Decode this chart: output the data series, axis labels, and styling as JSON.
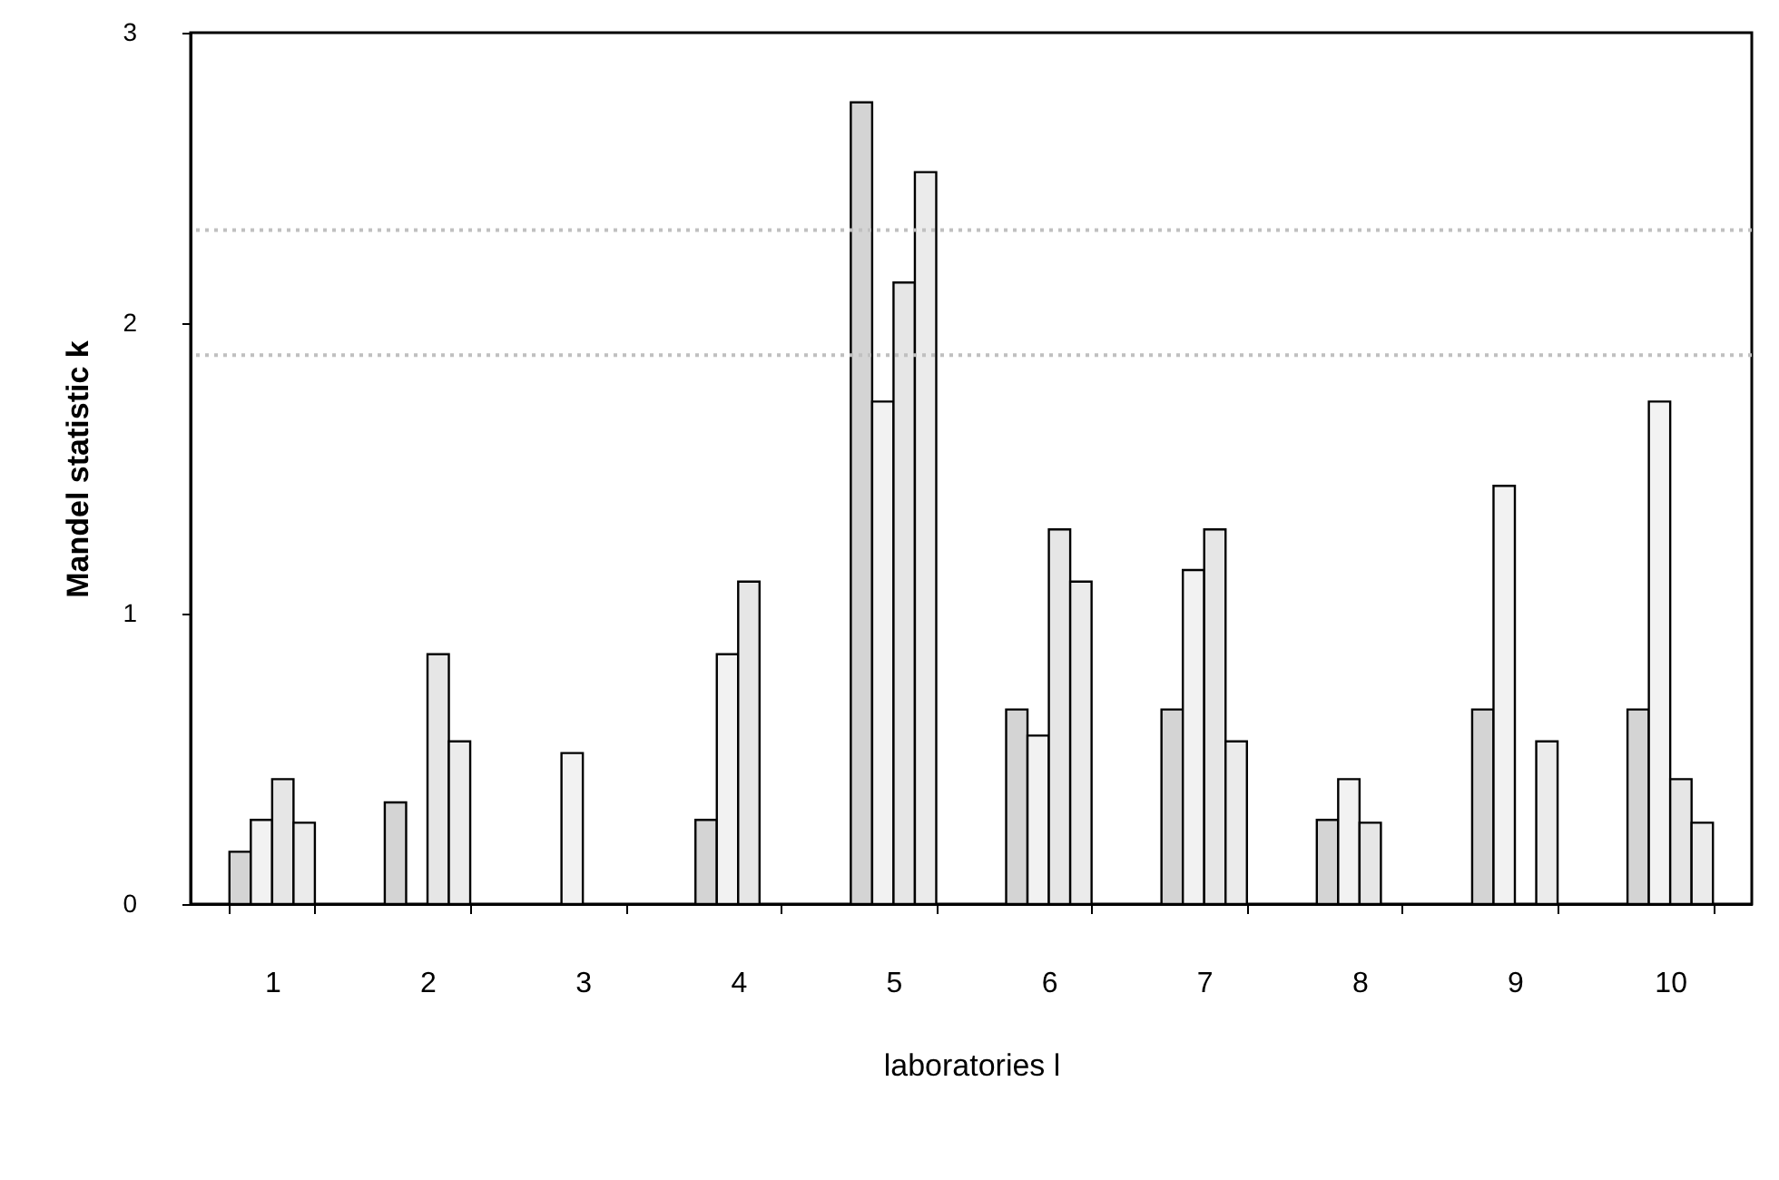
{
  "chart_data": {
    "type": "bar",
    "xlabel": "laboratories  l",
    "ylabel": "Mandel statistic  k",
    "categories": [
      "1",
      "2",
      "3",
      "4",
      "5",
      "6",
      "7",
      "8",
      "9",
      "10"
    ],
    "series": [
      {
        "color": "#d4d4d4",
        "values": [
          0.18,
          0.35,
          null,
          0.29,
          2.76,
          0.67,
          0.67,
          0.29,
          0.67,
          0.67
        ]
      },
      {
        "color": "#f2f2f2",
        "values": [
          0.29,
          null,
          0.52,
          0.86,
          1.73,
          0.58,
          1.15,
          0.43,
          1.44,
          1.73
        ]
      },
      {
        "color": "#e6e6e6",
        "values": [
          0.43,
          0.86,
          null,
          1.11,
          2.14,
          1.29,
          1.29,
          0.28,
          null,
          0.43
        ]
      },
      {
        "color": "#ebebeb",
        "values": [
          0.28,
          0.56,
          null,
          null,
          2.52,
          1.11,
          0.56,
          null,
          0.56,
          0.28
        ]
      }
    ],
    "ylim": [
      0,
      3
    ],
    "yticks": [
      0,
      1,
      2,
      3
    ],
    "grid": false,
    "ref_lines": [
      {
        "axis": "y",
        "value": 2.32,
        "color": "#c0c0c0",
        "line_style": "dotted"
      },
      {
        "axis": "y",
        "value": 1.89,
        "color": "#c0c0c0",
        "line_style": "dotted"
      }
    ]
  }
}
